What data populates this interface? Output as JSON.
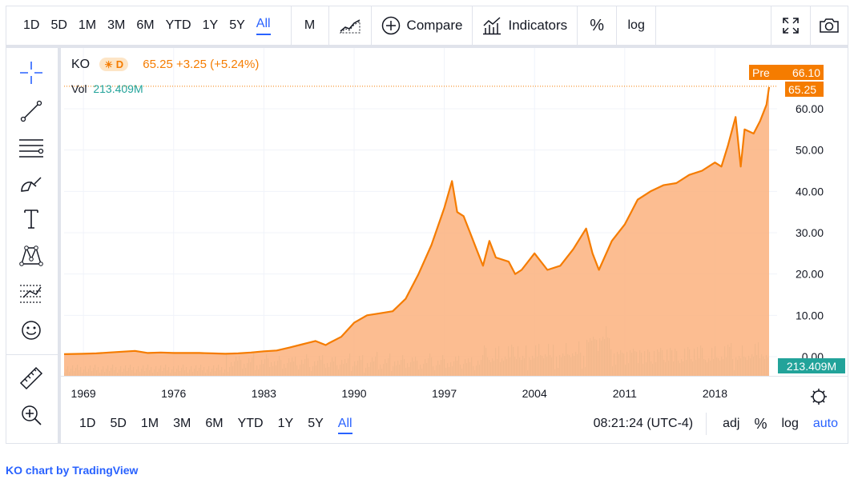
{
  "toolbar": {
    "ranges": [
      "1D",
      "5D",
      "1M",
      "3M",
      "6M",
      "YTD",
      "1Y",
      "5Y",
      "All"
    ],
    "active_range": "All",
    "interval": "M",
    "compare_label": "Compare",
    "indicators_label": "Indicators",
    "percent_label": "%",
    "log_label": "log"
  },
  "legend": {
    "symbol": "KO",
    "badge": "D",
    "ohlc_text": "65.25 +3.25 (+5.24%)",
    "vol_label": "Vol",
    "vol_value": "213.409M"
  },
  "price_axis": {
    "pre_label": "Pre",
    "pre_value": "66.10",
    "last_value": "65.25",
    "vol_value": "213.409M",
    "ticks": [
      "60.00",
      "50.00",
      "40.00",
      "30.00",
      "20.00",
      "10.00",
      "0.00"
    ]
  },
  "bottom_bar": {
    "ranges": [
      "1D",
      "5D",
      "1M",
      "3M",
      "6M",
      "YTD",
      "1Y",
      "5Y",
      "All"
    ],
    "active_range": "All",
    "clock": "08:21:24 (UTC-4)",
    "adj_label": "adj",
    "percent_label": "%",
    "log_label": "log",
    "auto_label": "auto"
  },
  "credit": {
    "text": "KO chart by TradingView"
  },
  "colors": {
    "line": "#f57c00",
    "area": "#fbb27e",
    "volume": "#22a39a",
    "accent": "#2962ff"
  },
  "chart_data": {
    "type": "area",
    "x_ticks": [
      "1969",
      "1976",
      "1983",
      "1990",
      "1997",
      "2004",
      "2011",
      "2018"
    ],
    "ylim": [
      0,
      65
    ],
    "series": [
      {
        "x": [
          1967.5,
          1969,
          1970,
          1971,
          1972,
          1973,
          1974,
          1975,
          1976,
          1977,
          1978,
          1979,
          1980,
          1981,
          1982,
          1983,
          1984,
          1985,
          1986,
          1987,
          1987.8,
          1988,
          1989,
          1990,
          1991,
          1992,
          1993,
          1994,
          1995,
          1996,
          1997,
          1997.6,
          1998,
          1998.5,
          1999,
          1999.5,
          2000,
          2000.5,
          2001,
          2002,
          2002.5,
          2003,
          2004,
          2005,
          2006,
          2007,
          2008,
          2008.5,
          2009,
          2010,
          2011,
          2011.5,
          2012,
          2013,
          2014,
          2015,
          2016,
          2017,
          2018,
          2018.5,
          2019,
          2019.6,
          2020,
          2020.3,
          2021,
          2021.5,
          2022,
          2022.2
        ],
        "values": [
          0.6,
          0.7,
          0.8,
          1.0,
          1.2,
          1.4,
          0.9,
          1.0,
          0.9,
          0.9,
          0.9,
          0.8,
          0.7,
          0.8,
          1.0,
          1.3,
          1.5,
          2.2,
          3.0,
          3.8,
          2.8,
          3.2,
          4.8,
          8.2,
          10.0,
          10.5,
          11.0,
          14.0,
          20.0,
          27.0,
          36.0,
          42.5,
          35.0,
          34.0,
          30.0,
          26.0,
          22.0,
          28.0,
          24.0,
          23.0,
          20.0,
          21.0,
          25.0,
          21.0,
          22.0,
          26.0,
          31.0,
          25.0,
          21.0,
          28.0,
          32.0,
          35.0,
          38.0,
          40.0,
          41.5,
          42.0,
          44.0,
          45.0,
          47.0,
          46.0,
          51.0,
          58.0,
          46.0,
          55.0,
          54.0,
          57.0,
          61.0,
          65.25
        ]
      }
    ]
  }
}
